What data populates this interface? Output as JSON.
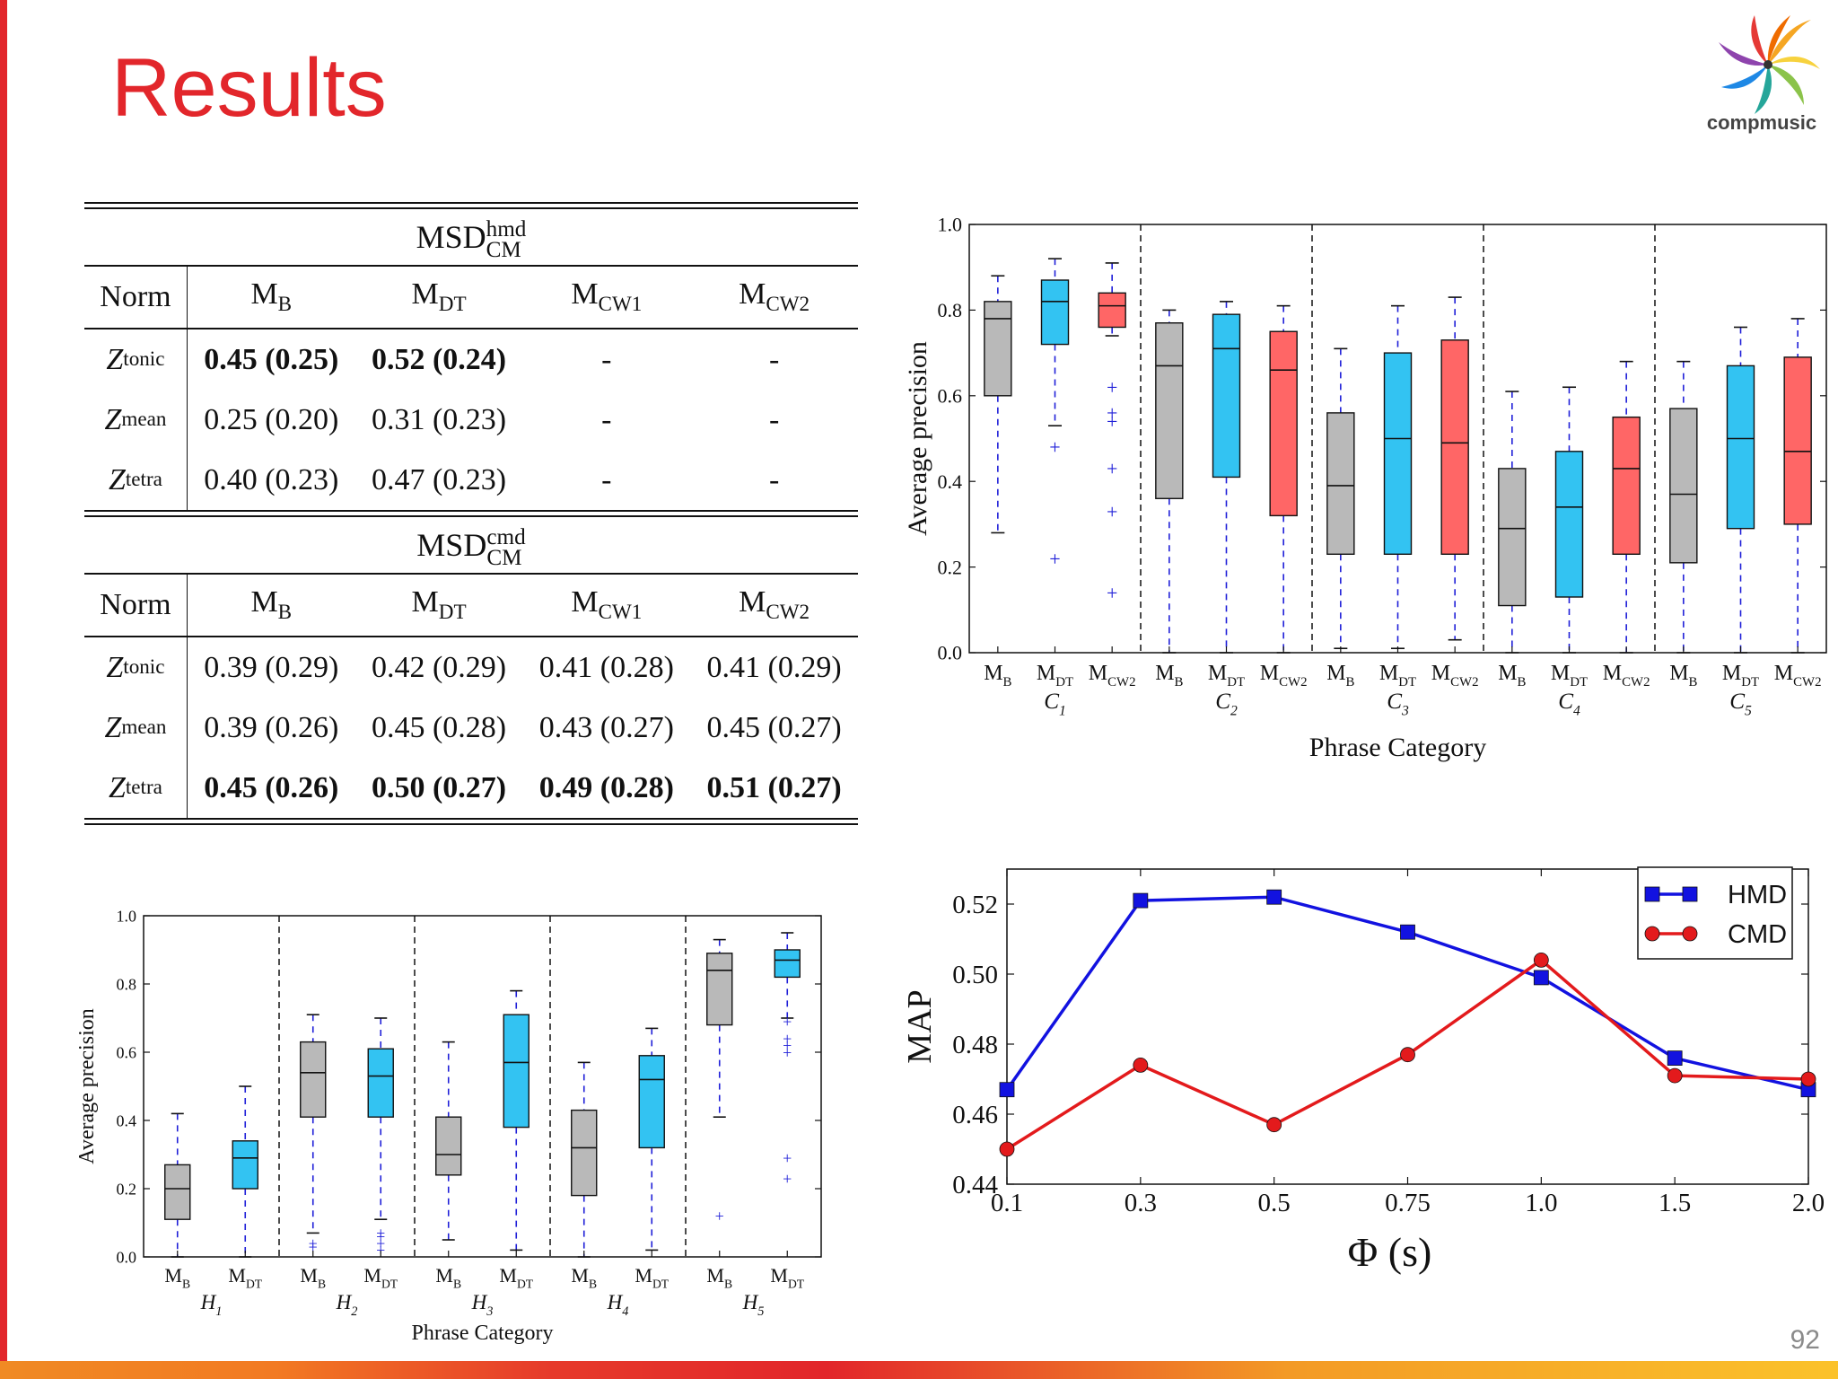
{
  "slide": {
    "title": "Results",
    "page_number": "92",
    "logo_text": "compmusic"
  },
  "table": {
    "groups": [
      {
        "title_main": "MSD",
        "title_sup": "hmd",
        "title_sub": "CM",
        "headers": [
          {
            "m": "Norm",
            "s": ""
          },
          {
            "m": "M",
            "s": "B"
          },
          {
            "m": "M",
            "s": "DT"
          },
          {
            "m": "M",
            "s": "CW1"
          },
          {
            "m": "M",
            "s": "CW2"
          }
        ],
        "rows": [
          {
            "z": "Z",
            "zs": "tonic",
            "cells": [
              "0.45 (0.25)",
              "0.52 (0.24)",
              "-",
              "-"
            ],
            "bold": [
              true,
              true,
              false,
              false
            ]
          },
          {
            "z": "Z",
            "zs": "mean",
            "cells": [
              "0.25 (0.20)",
              "0.31 (0.23)",
              "-",
              "-"
            ],
            "bold": [
              false,
              false,
              false,
              false
            ]
          },
          {
            "z": "Z",
            "zs": "tetra",
            "cells": [
              "0.40 (0.23)",
              "0.47 (0.23)",
              "-",
              "-"
            ],
            "bold": [
              false,
              false,
              false,
              false
            ]
          }
        ]
      },
      {
        "title_main": "MSD",
        "title_sup": "cmd",
        "title_sub": "CM",
        "headers": [
          {
            "m": "Norm",
            "s": ""
          },
          {
            "m": "M",
            "s": "B"
          },
          {
            "m": "M",
            "s": "DT"
          },
          {
            "m": "M",
            "s": "CW1"
          },
          {
            "m": "M",
            "s": "CW2"
          }
        ],
        "rows": [
          {
            "z": "Z",
            "zs": "tonic",
            "cells": [
              "0.39 (0.29)",
              "0.42 (0.29)",
              "0.41 (0.28)",
              "0.41 (0.29)"
            ],
            "bold": [
              false,
              false,
              false,
              false
            ]
          },
          {
            "z": "Z",
            "zs": "mean",
            "cells": [
              "0.39 (0.26)",
              "0.45 (0.28)",
              "0.43 (0.27)",
              "0.45 (0.27)"
            ],
            "bold": [
              false,
              false,
              false,
              false
            ]
          },
          {
            "z": "Z",
            "zs": "tetra",
            "cells": [
              "0.45 (0.26)",
              "0.50 (0.27)",
              "0.49 (0.28)",
              "0.51 (0.27)"
            ],
            "bold": [
              true,
              true,
              true,
              true
            ]
          }
        ]
      }
    ]
  },
  "chart_data": [
    {
      "type": "boxplot",
      "xlabel": "Phrase Category",
      "ylabel": "Average precision",
      "ylim": [
        0.0,
        1.0
      ],
      "yticks": [
        "0.0",
        "0.2",
        "0.4",
        "0.6",
        "0.8",
        "1.0"
      ],
      "colors": {
        "MB": "#b9b9b9",
        "MDT": "#33c3f2",
        "MCW2": "#ff6666",
        "whisker": "#1f1fd8"
      },
      "categories": [
        {
          "name": "C",
          "sub": "1",
          "boxes": [
            {
              "m": "M",
              "s": "B",
              "color": "MB",
              "wlo": 0.28,
              "q1": 0.6,
              "med": 0.78,
              "q3": 0.82,
              "whi": 0.88,
              "fl": []
            },
            {
              "m": "M",
              "s": "DT",
              "color": "MDT",
              "wlo": 0.53,
              "q1": 0.72,
              "med": 0.82,
              "q3": 0.87,
              "whi": 0.92,
              "fl": [
                0.48,
                0.22
              ]
            },
            {
              "m": "M",
              "s": "CW2",
              "color": "MCW2",
              "wlo": 0.74,
              "q1": 0.76,
              "med": 0.81,
              "q3": 0.84,
              "whi": 0.91,
              "fl": [
                0.62,
                0.56,
                0.54,
                0.43,
                0.33,
                0.14
              ]
            }
          ]
        },
        {
          "name": "C",
          "sub": "2",
          "boxes": [
            {
              "m": "M",
              "s": "B",
              "color": "MB",
              "wlo": 0.0,
              "q1": 0.36,
              "med": 0.67,
              "q3": 0.77,
              "whi": 0.8,
              "fl": []
            },
            {
              "m": "M",
              "s": "DT",
              "color": "MDT",
              "wlo": 0.0,
              "q1": 0.41,
              "med": 0.71,
              "q3": 0.79,
              "whi": 0.82,
              "fl": []
            },
            {
              "m": "M",
              "s": "CW2",
              "color": "MCW2",
              "wlo": 0.0,
              "q1": 0.32,
              "med": 0.66,
              "q3": 0.75,
              "whi": 0.81,
              "fl": []
            }
          ]
        },
        {
          "name": "C",
          "sub": "3",
          "boxes": [
            {
              "m": "M",
              "s": "B",
              "color": "MB",
              "wlo": 0.01,
              "q1": 0.23,
              "med": 0.39,
              "q3": 0.56,
              "whi": 0.71,
              "fl": []
            },
            {
              "m": "M",
              "s": "DT",
              "color": "MDT",
              "wlo": 0.01,
              "q1": 0.23,
              "med": 0.5,
              "q3": 0.7,
              "whi": 0.81,
              "fl": []
            },
            {
              "m": "M",
              "s": "CW2",
              "color": "MCW2",
              "wlo": 0.03,
              "q1": 0.23,
              "med": 0.49,
              "q3": 0.73,
              "whi": 0.83,
              "fl": []
            }
          ]
        },
        {
          "name": "C",
          "sub": "4",
          "boxes": [
            {
              "m": "M",
              "s": "B",
              "color": "MB",
              "wlo": 0.0,
              "q1": 0.11,
              "med": 0.29,
              "q3": 0.43,
              "whi": 0.61,
              "fl": []
            },
            {
              "m": "M",
              "s": "DT",
              "color": "MDT",
              "wlo": 0.0,
              "q1": 0.13,
              "med": 0.34,
              "q3": 0.47,
              "whi": 0.62,
              "fl": []
            },
            {
              "m": "M",
              "s": "CW2",
              "color": "MCW2",
              "wlo": 0.0,
              "q1": 0.23,
              "med": 0.43,
              "q3": 0.55,
              "whi": 0.68,
              "fl": []
            }
          ]
        },
        {
          "name": "C",
          "sub": "5",
          "boxes": [
            {
              "m": "M",
              "s": "B",
              "color": "MB",
              "wlo": 0.0,
              "q1": 0.21,
              "med": 0.37,
              "q3": 0.57,
              "whi": 0.68,
              "fl": []
            },
            {
              "m": "M",
              "s": "DT",
              "color": "MDT",
              "wlo": 0.0,
              "q1": 0.29,
              "med": 0.5,
              "q3": 0.67,
              "whi": 0.76,
              "fl": []
            },
            {
              "m": "M",
              "s": "CW2",
              "color": "MCW2",
              "wlo": 0.0,
              "q1": 0.3,
              "med": 0.47,
              "q3": 0.69,
              "whi": 0.78,
              "fl": []
            }
          ]
        }
      ]
    },
    {
      "type": "boxplot",
      "xlabel": "Phrase Category",
      "ylabel": "Average precision",
      "ylim": [
        0.0,
        1.0
      ],
      "yticks": [
        "0.0",
        "0.2",
        "0.4",
        "0.6",
        "0.8",
        "1.0"
      ],
      "colors": {
        "MB": "#b9b9b9",
        "MDT": "#33c3f2",
        "whisker": "#1f1fd8"
      },
      "categories": [
        {
          "name": "H",
          "sub": "1",
          "boxes": [
            {
              "m": "M",
              "s": "B",
              "color": "MB",
              "wlo": 0.0,
              "q1": 0.11,
              "med": 0.2,
              "q3": 0.27,
              "whi": 0.42,
              "fl": []
            },
            {
              "m": "M",
              "s": "DT",
              "color": "MDT",
              "wlo": 0.0,
              "q1": 0.2,
              "med": 0.29,
              "q3": 0.34,
              "whi": 0.5,
              "fl": []
            }
          ]
        },
        {
          "name": "H",
          "sub": "2",
          "boxes": [
            {
              "m": "M",
              "s": "B",
              "color": "MB",
              "wlo": 0.07,
              "q1": 0.41,
              "med": 0.54,
              "q3": 0.63,
              "whi": 0.71,
              "fl": [
                0.04,
                0.03
              ]
            },
            {
              "m": "M",
              "s": "DT",
              "color": "MDT",
              "wlo": 0.11,
              "q1": 0.41,
              "med": 0.53,
              "q3": 0.61,
              "whi": 0.7,
              "fl": [
                0.07,
                0.06,
                0.04,
                0.02
              ]
            }
          ]
        },
        {
          "name": "H",
          "sub": "3",
          "boxes": [
            {
              "m": "M",
              "s": "B",
              "color": "MB",
              "wlo": 0.05,
              "q1": 0.24,
              "med": 0.3,
              "q3": 0.41,
              "whi": 0.63,
              "fl": []
            },
            {
              "m": "M",
              "s": "DT",
              "color": "MDT",
              "wlo": 0.02,
              "q1": 0.38,
              "med": 0.57,
              "q3": 0.71,
              "whi": 0.78,
              "fl": []
            }
          ]
        },
        {
          "name": "H",
          "sub": "4",
          "boxes": [
            {
              "m": "M",
              "s": "B",
              "color": "MB",
              "wlo": 0.0,
              "q1": 0.18,
              "med": 0.32,
              "q3": 0.43,
              "whi": 0.57,
              "fl": []
            },
            {
              "m": "M",
              "s": "DT",
              "color": "MDT",
              "wlo": 0.02,
              "q1": 0.32,
              "med": 0.52,
              "q3": 0.59,
              "whi": 0.67,
              "fl": []
            }
          ]
        },
        {
          "name": "H",
          "sub": "5",
          "boxes": [
            {
              "m": "M",
              "s": "B",
              "color": "MB",
              "wlo": 0.41,
              "q1": 0.68,
              "med": 0.84,
              "q3": 0.89,
              "whi": 0.93,
              "fl": [
                0.12
              ]
            },
            {
              "m": "M",
              "s": "DT",
              "color": "MDT",
              "wlo": 0.7,
              "q1": 0.82,
              "med": 0.87,
              "q3": 0.9,
              "whi": 0.95,
              "fl": [
                0.69,
                0.64,
                0.62,
                0.6,
                0.29,
                0.23
              ]
            }
          ]
        }
      ]
    },
    {
      "type": "line",
      "xlabel": "Φ (s)",
      "ylabel": "MAP",
      "x": [
        "0.1",
        "0.3",
        "0.5",
        "0.75",
        "1.0",
        "1.5",
        "2.0"
      ],
      "ylim": [
        0.44,
        0.53
      ],
      "yticks": [
        "0.44",
        "0.46",
        "0.48",
        "0.50",
        "0.52"
      ],
      "series": [
        {
          "name": "HMD",
          "color": "#1212e0",
          "marker": "square",
          "values": [
            0.467,
            0.521,
            0.522,
            0.512,
            0.499,
            0.476,
            0.467
          ]
        },
        {
          "name": "CMD",
          "color": "#e31a1c",
          "marker": "circle",
          "values": [
            0.45,
            0.474,
            0.457,
            0.477,
            0.504,
            0.471,
            0.47
          ]
        }
      ]
    }
  ]
}
